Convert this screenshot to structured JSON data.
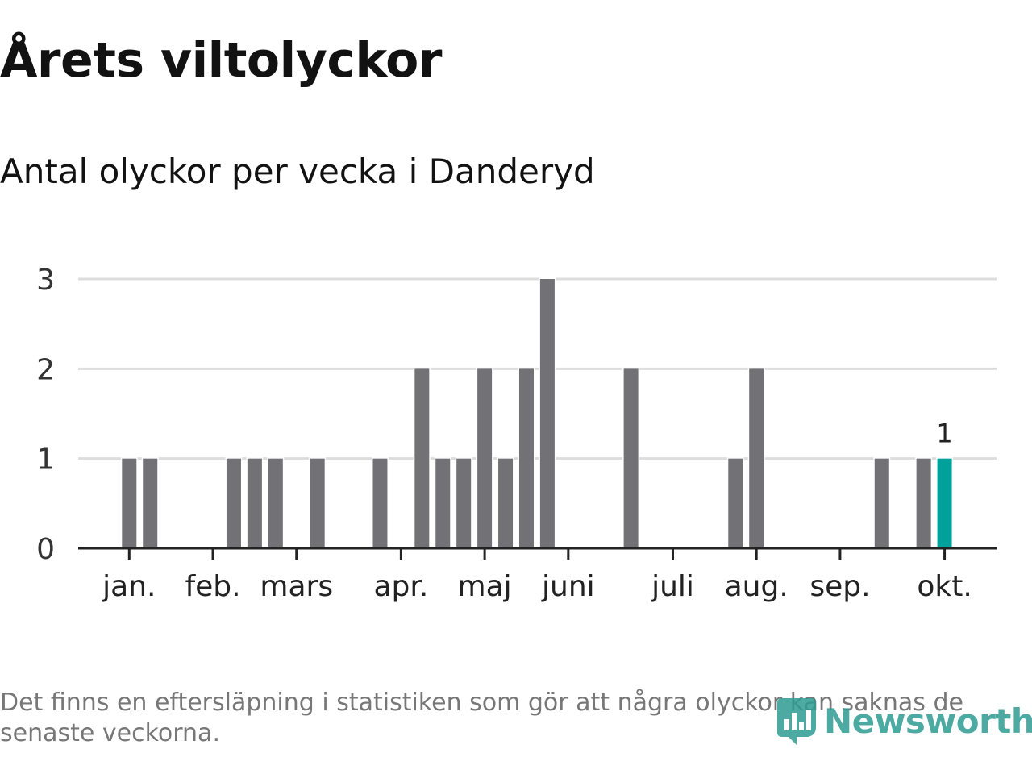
{
  "title": "Årets viltolyckor",
  "subtitle": "Antal olyckor per vecka i Danderyd",
  "footnote": "Det finns en eftersläpning i statistiken som gör att några olyckor kan saknas de senaste veckorna.",
  "logo": {
    "text": "Newsworthy",
    "icon": "bar-chart-shield-icon"
  },
  "colors": {
    "bar": "#727176",
    "highlight": "#00a19a",
    "grid": "#dddddd",
    "axis": "#222222",
    "logo": "#2f9c92"
  },
  "chart_data": {
    "type": "bar",
    "x_unit": "week",
    "ylim": [
      0,
      3
    ],
    "y_ticks": [
      0,
      1,
      2,
      3
    ],
    "grid": true,
    "x_ticks": [
      {
        "label": "jan.",
        "week": 1
      },
      {
        "label": "feb.",
        "week": 5
      },
      {
        "label": "mars",
        "week": 9
      },
      {
        "label": "apr.",
        "week": 14
      },
      {
        "label": "maj",
        "week": 18
      },
      {
        "label": "juni",
        "week": 22
      },
      {
        "label": "juli",
        "week": 27
      },
      {
        "label": "aug.",
        "week": 31
      },
      {
        "label": "sep.",
        "week": 35
      },
      {
        "label": "okt.",
        "week": 40
      }
    ],
    "points": [
      {
        "week": 1,
        "value": 1
      },
      {
        "week": 2,
        "value": 1
      },
      {
        "week": 6,
        "value": 1
      },
      {
        "week": 7,
        "value": 1
      },
      {
        "week": 8,
        "value": 1
      },
      {
        "week": 10,
        "value": 1
      },
      {
        "week": 13,
        "value": 1
      },
      {
        "week": 15,
        "value": 2
      },
      {
        "week": 16,
        "value": 1
      },
      {
        "week": 17,
        "value": 1
      },
      {
        "week": 18,
        "value": 2
      },
      {
        "week": 19,
        "value": 1
      },
      {
        "week": 20,
        "value": 2
      },
      {
        "week": 21,
        "value": 3
      },
      {
        "week": 25,
        "value": 2
      },
      {
        "week": 30,
        "value": 1
      },
      {
        "week": 31,
        "value": 2
      },
      {
        "week": 37,
        "value": 1
      },
      {
        "week": 39,
        "value": 1
      },
      {
        "week": 40,
        "value": 1,
        "highlight": true,
        "label": "1"
      }
    ]
  }
}
